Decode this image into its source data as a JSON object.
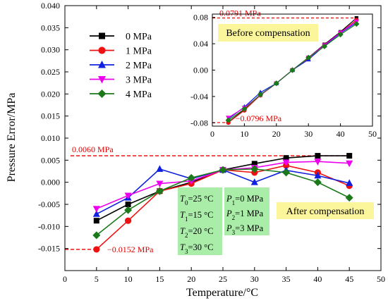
{
  "chart_data": [
    {
      "type": "line",
      "xlabel": "Temperature/°C",
      "ylabel": "Pressure Error/MPa",
      "xlim": [
        0,
        50
      ],
      "ylim": [
        -0.02,
        0.04
      ],
      "xticks": [
        0,
        5,
        10,
        15,
        20,
        25,
        30,
        35,
        40,
        45,
        50
      ],
      "xtick_labels": [
        "0",
        "5",
        "10",
        "15",
        "20",
        "25",
        "30",
        "35",
        "40",
        "45",
        "50"
      ],
      "yticks": [
        -0.015,
        -0.01,
        -0.005,
        0,
        0.005,
        0.01,
        0.015,
        0.02,
        0.025,
        0.03,
        0.035,
        0.04
      ],
      "ytick_labels": [
        "-0.015",
        "-0.010",
        "-0.005",
        "0.000",
        "0.005",
        "0.010",
        "0.015",
        "0.020",
        "0.025",
        "0.030",
        "0.035",
        "0.040"
      ],
      "x": [
        5,
        10,
        15,
        20,
        25,
        30,
        35,
        40,
        45
      ],
      "series": [
        {
          "name": "0 MPa",
          "color": "#000000",
          "marker": "square",
          "values": [
            -0.0087,
            -0.005,
            -0.002,
            0.0,
            0.0028,
            0.0042,
            0.0055,
            0.006,
            0.006
          ]
        },
        {
          "name": "1 MPa",
          "color": "#ee1111",
          "marker": "circle",
          "values": [
            -0.0152,
            -0.0087,
            -0.002,
            -0.0003,
            0.0028,
            0.0022,
            0.0038,
            0.0022,
            -0.0008
          ]
        },
        {
          "name": "2 MPa",
          "color": "#1020e0",
          "marker": "triangle-up",
          "values": [
            -0.0072,
            -0.0035,
            0.003,
            0.0008,
            0.0028,
            0.0,
            0.0027,
            0.0015,
            -0.0002
          ]
        },
        {
          "name": "3 MPa",
          "color": "#ee00ee",
          "marker": "triangle-down",
          "values": [
            -0.006,
            -0.003,
            -0.0003,
            0.0003,
            0.0028,
            0.0033,
            0.0045,
            0.0047,
            0.0043
          ]
        },
        {
          "name": "4 MPa",
          "color": "#1a7a1a",
          "marker": "diamond",
          "values": [
            -0.012,
            -0.0063,
            -0.002,
            0.001,
            0.0028,
            0.003,
            0.0022,
            0.0,
            -0.0035
          ]
        }
      ],
      "reference_lines": [
        {
          "value": 0.006,
          "label": "0.0060 MPa",
          "color": "#e00000"
        },
        {
          "value": -0.0152,
          "label": "−0.0152 MPa",
          "color": "#e00000"
        }
      ],
      "legend_position": "upper-left",
      "annotations": {
        "after_label": "After compensation",
        "temperatures": [
          {
            "sym": "T",
            "sub": "0",
            "rest": "=25 °C"
          },
          {
            "sym": "T",
            "sub": "1",
            "rest": "=15 °C"
          },
          {
            "sym": "T",
            "sub": "2",
            "rest": "=20 °C"
          },
          {
            "sym": "T",
            "sub": "3",
            "rest": "=30 °C"
          }
        ],
        "pressures": [
          {
            "sym": "P",
            "sub": "1",
            "rest": "=0 MPa"
          },
          {
            "sym": "P",
            "sub": "2",
            "rest": "=1 MPa"
          },
          {
            "sym": "P",
            "sub": "3",
            "rest": "=3 MPa"
          }
        ]
      }
    },
    {
      "type": "line",
      "inset": true,
      "xlim": [
        0,
        50
      ],
      "ylim": [
        -0.085,
        0.085
      ],
      "xticks": [
        0,
        10,
        20,
        30,
        40,
        50
      ],
      "xtick_labels": [
        "0",
        "10",
        "20",
        "30",
        "40",
        "50"
      ],
      "yticks": [
        -0.08,
        -0.04,
        0,
        0.04,
        0.08
      ],
      "ytick_labels": [
        "-0.08",
        "-0.04",
        "0.00",
        "0.04",
        "0.08"
      ],
      "x": [
        5,
        10,
        15,
        20,
        25,
        30,
        35,
        40,
        45
      ],
      "series": [
        {
          "color": "#000000",
          "marker": "square",
          "values": [
            -0.079,
            -0.06,
            -0.038,
            -0.02,
            0.0,
            0.019,
            0.039,
            0.058,
            0.0791
          ]
        },
        {
          "color": "#ee1111",
          "marker": "circle",
          "values": [
            -0.0796,
            -0.061,
            -0.038,
            -0.02,
            0.0,
            0.018,
            0.038,
            0.057,
            0.076
          ]
        },
        {
          "color": "#1020e0",
          "marker": "triangle-up",
          "values": [
            -0.074,
            -0.056,
            -0.034,
            -0.02,
            0.0,
            0.016,
            0.037,
            0.056,
            0.072
          ]
        },
        {
          "color": "#ee00ee",
          "marker": "triangle-down",
          "values": [
            -0.072,
            -0.057,
            -0.038,
            -0.02,
            0.0,
            0.019,
            0.038,
            0.057,
            0.074
          ]
        },
        {
          "color": "#1a7a1a",
          "marker": "diamond",
          "values": [
            -0.076,
            -0.059,
            -0.037,
            -0.02,
            0.0,
            0.019,
            0.036,
            0.054,
            0.07
          ]
        }
      ],
      "reference_lines": [
        {
          "value": 0.0791,
          "label": "0.0791 MPa",
          "color": "#e00000"
        },
        {
          "value": -0.0796,
          "label": "−0.0796 MPa",
          "color": "#e00000"
        }
      ],
      "annotations": {
        "before_label": "Before compensation"
      }
    }
  ]
}
